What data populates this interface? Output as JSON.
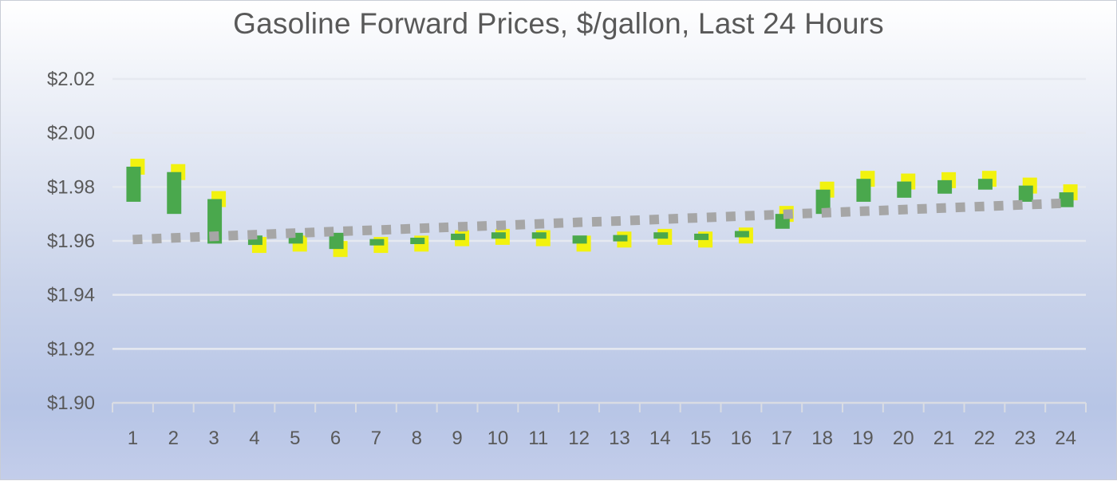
{
  "chart_data": {
    "type": "bar",
    "title": "Gasoline Forward Prices, $/gallon, Last 24 Hours",
    "xlabel": "",
    "ylabel": "",
    "ylim": [
      1.9,
      2.02
    ],
    "y_tick_labels": [
      "$1.90",
      "$1.92",
      "$1.94",
      "$1.96",
      "$1.98",
      "$2.00",
      "$2.02"
    ],
    "y_ticks": [
      1.9,
      1.92,
      1.94,
      1.96,
      1.98,
      2.0,
      2.02
    ],
    "categories": [
      "1",
      "2",
      "3",
      "4",
      "5",
      "6",
      "7",
      "8",
      "9",
      "10",
      "11",
      "12",
      "13",
      "14",
      "15",
      "16",
      "17",
      "18",
      "19",
      "20",
      "21",
      "22",
      "23",
      "24"
    ],
    "series": [
      {
        "values_open": [
          1.9745,
          1.97,
          1.959,
          1.962,
          1.963,
          1.963,
          1.9605,
          1.961,
          1.962,
          1.9625,
          1.963,
          1.962,
          1.9615,
          1.9625,
          1.9625,
          1.963,
          1.9645,
          1.97,
          1.9745,
          1.976,
          1.9775,
          1.979,
          1.9745,
          1.9725
        ]
      },
      {
        "values_close": [
          1.9875,
          1.9855,
          1.9755,
          1.9585,
          1.959,
          1.957,
          1.9585,
          1.959,
          1.961,
          1.9615,
          1.961,
          1.959,
          1.9605,
          1.9615,
          1.9605,
          1.962,
          1.97,
          1.979,
          1.983,
          1.982,
          1.9825,
          1.983,
          1.9805,
          1.978
        ]
      },
      {
        "values_trend": [
          1.9605,
          1.9611,
          1.9617,
          1.9623,
          1.9629,
          1.9635,
          1.964,
          1.9646,
          1.9652,
          1.9657,
          1.9663,
          1.9669,
          1.9674,
          1.968,
          1.9686,
          1.9692,
          1.9698,
          1.9704,
          1.971,
          1.9716,
          1.9722,
          1.9728,
          1.9734,
          1.974
        ]
      }
    ],
    "colors": {
      "up": "#4aa84d",
      "down": "#f2f20e",
      "trend": "#a6a6a6",
      "grid": "#e6e9f0",
      "axis": "#d9dce3",
      "text": "#595959"
    },
    "grid": true,
    "legend": "none"
  }
}
